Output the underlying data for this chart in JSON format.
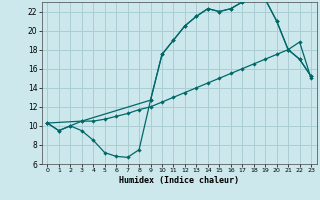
{
  "xlabel": "Humidex (Indice chaleur)",
  "bg_color": "#cce8ec",
  "grid_color": "#aacdd4",
  "line_color": "#006868",
  "xlim": [
    -0.5,
    23.5
  ],
  "ylim": [
    6,
    23
  ],
  "xticks": [
    0,
    1,
    2,
    3,
    4,
    5,
    6,
    7,
    8,
    9,
    10,
    11,
    12,
    13,
    14,
    15,
    16,
    17,
    18,
    19,
    20,
    21,
    22,
    23
  ],
  "yticks": [
    6,
    8,
    10,
    12,
    14,
    16,
    18,
    20,
    22
  ],
  "curve1_x": [
    0,
    1,
    2,
    3,
    4,
    5,
    6,
    7,
    8,
    9,
    10,
    11,
    12,
    13,
    14,
    15,
    16,
    17,
    18,
    19,
    20,
    21,
    22,
    23
  ],
  "curve1_y": [
    10.3,
    9.5,
    10.0,
    10.5,
    10.5,
    10.7,
    11.0,
    11.3,
    11.7,
    12.0,
    12.5,
    13.0,
    13.5,
    14.0,
    14.5,
    15.0,
    15.5,
    16.0,
    16.5,
    17.0,
    17.5,
    18.0,
    18.8,
    15.0
  ],
  "curve2_x": [
    0,
    1,
    2,
    3,
    4,
    5,
    6,
    7,
    8,
    9,
    10,
    11,
    12,
    13,
    14,
    15,
    16,
    17,
    18,
    19,
    20,
    21,
    22,
    23
  ],
  "curve2_y": [
    10.3,
    9.5,
    10.0,
    9.5,
    8.5,
    7.2,
    6.8,
    6.7,
    7.5,
    12.7,
    17.5,
    19.0,
    20.5,
    21.5,
    22.3,
    22.0,
    22.3,
    23.0,
    23.3,
    23.3,
    21.0,
    18.0,
    17.0,
    15.2
  ],
  "curve3_x": [
    0,
    3,
    9,
    10,
    11,
    12,
    13,
    14,
    15,
    16,
    17,
    18,
    19,
    20,
    21,
    22,
    23
  ],
  "curve3_y": [
    10.3,
    10.5,
    12.7,
    17.5,
    19.0,
    20.5,
    21.5,
    22.3,
    22.0,
    22.3,
    23.0,
    23.3,
    23.3,
    21.0,
    18.0,
    17.0,
    15.2
  ]
}
